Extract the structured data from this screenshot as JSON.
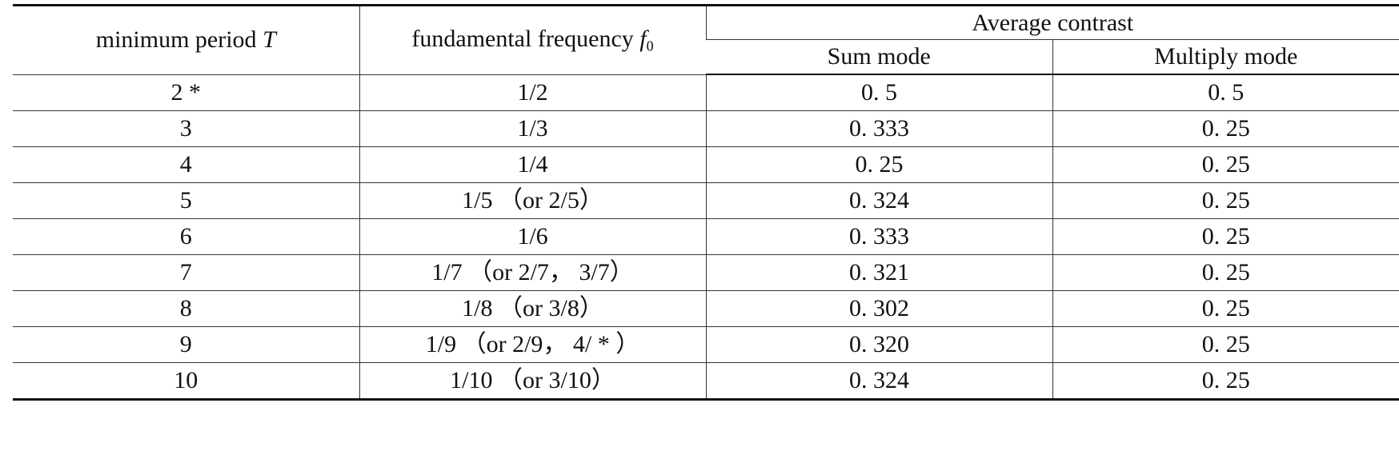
{
  "header": {
    "col1_text": "minimum period ",
    "col1_var": "T",
    "col2_text": "fundamental frequency ",
    "col2_var": "f",
    "col2_sub": "0",
    "group_label": "Average contrast",
    "sum_mode": "Sum mode",
    "multiply_mode": "Multiply mode"
  },
  "rows": [
    {
      "period": "2 *",
      "frequency": "1/2",
      "sum": "0. 5",
      "multiply": "0. 5"
    },
    {
      "period": "3",
      "frequency": "1/3",
      "sum": "0. 333",
      "multiply": "0. 25"
    },
    {
      "period": "4",
      "frequency": "1/4",
      "sum": "0. 25",
      "multiply": "0. 25"
    },
    {
      "period": "5",
      "frequency": "1/5 （or 2/5）",
      "sum": "0. 324",
      "multiply": "0. 25"
    },
    {
      "period": "6",
      "frequency": "1/6",
      "sum": "0. 333",
      "multiply": "0. 25"
    },
    {
      "period": "7",
      "frequency": "1/7 （or 2/7， 3/7）",
      "sum": "0. 321",
      "multiply": "0. 25"
    },
    {
      "period": "8",
      "frequency": "1/8 （or 3/8）",
      "sum": "0. 302",
      "multiply": "0. 25"
    },
    {
      "period": "9",
      "frequency": "1/9 （or 2/9， 4/ * ）",
      "sum": "0. 320",
      "multiply": "0. 25"
    },
    {
      "period": "10",
      "frequency": "1/10 （or 3/10）",
      "sum": "0. 324",
      "multiply": "0. 25"
    }
  ]
}
